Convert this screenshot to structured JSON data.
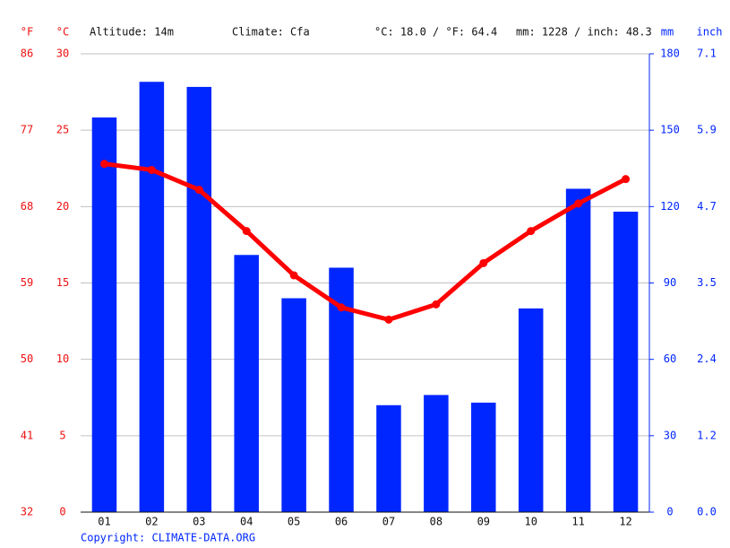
{
  "chart_data": {
    "type": "combo",
    "header": {
      "f_unit": "°F",
      "c_unit": "°C",
      "altitude": "Altitude: 14m",
      "climate": "Climate: Cfa",
      "temp_avg": "°C: 18.0 / °F: 64.4",
      "precip_total": "mm: 1228 / inch: 48.3",
      "mm_unit": "mm",
      "inch_unit": "inch"
    },
    "copyright": "Copyright: CLIMATE-DATA.ORG",
    "categories": [
      "01",
      "02",
      "03",
      "04",
      "05",
      "06",
      "07",
      "08",
      "09",
      "10",
      "11",
      "12"
    ],
    "series": [
      {
        "name": "mm",
        "type": "bar",
        "axis": "y2",
        "color": "#0026ff",
        "values": [
          155,
          169,
          167,
          101,
          84,
          96,
          42,
          46,
          43,
          80,
          127,
          118
        ]
      },
      {
        "name": "°C",
        "type": "line",
        "axis": "y",
        "color": "#ff0000",
        "values": [
          22.8,
          22.4,
          21.1,
          18.4,
          15.5,
          13.4,
          12.6,
          13.6,
          16.3,
          18.4,
          20.2,
          21.8
        ]
      }
    ],
    "ylim": [
      0,
      30
    ],
    "yticks": [
      0,
      5,
      10,
      15,
      20,
      25,
      30
    ],
    "y2lim": [
      0,
      180
    ],
    "y2ticks": [
      0,
      30,
      60,
      90,
      120,
      150,
      180
    ],
    "flim": [
      32,
      86
    ],
    "fticks": [
      32,
      41,
      50,
      59,
      68,
      77,
      86
    ],
    "inchlim": [
      0,
      7.087
    ],
    "inchticks": [
      {
        "value": 0,
        "label": "0.0"
      },
      {
        "value": 1.181,
        "label": "1.2"
      },
      {
        "value": 2.362,
        "label": "2.4"
      },
      {
        "value": 3.543,
        "label": "3.5"
      },
      {
        "value": 4.724,
        "label": "4.7"
      },
      {
        "value": 5.906,
        "label": "5.9"
      },
      {
        "value": 7.087,
        "label": "7.1"
      }
    ],
    "grid": true
  }
}
